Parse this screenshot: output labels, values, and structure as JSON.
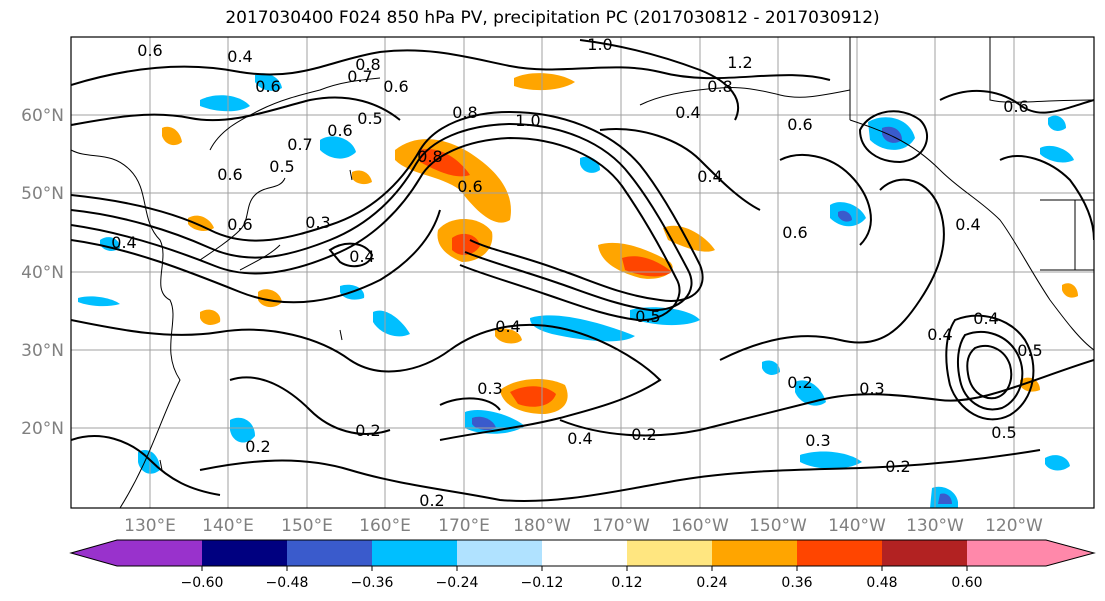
{
  "title": "2017030400 F024 850 hPa PV, precipitation PC (2017030812 - 2017030912)",
  "lat_labels": [
    "60°N",
    "50°N",
    "40°N",
    "30°N",
    "20°N"
  ],
  "lon_labels": [
    "130°E",
    "140°E",
    "150°E",
    "160°E",
    "170°E",
    "180°W",
    "170°W",
    "160°W",
    "150°W",
    "140°W",
    "130°W",
    "120°W"
  ],
  "colorbar": {
    "colors": [
      "#9932cc",
      "#000080",
      "#3a5bcc",
      "#00bfff",
      "#b0e2ff",
      "#ffffff",
      "#ffe680",
      "#ffa500",
      "#ff4500",
      "#b22222",
      "#ff88aa"
    ],
    "tick_labels": [
      "−0.60",
      "−0.48",
      "−0.36",
      "−0.24",
      "−0.12",
      "0.12",
      "0.24",
      "0.36",
      "0.48",
      "0.60"
    ]
  },
  "contour_labels": [
    "0.6",
    "0.4",
    "0.6",
    "0.8",
    "0.7",
    "0.6",
    "1.0",
    "1.2",
    "0.8",
    "0.4",
    "0.6",
    "0.5",
    "0.6",
    "0.7",
    "0.5",
    "0.6",
    "0.8",
    "0.6",
    "1.0",
    "0.8",
    "0.6",
    "0.4",
    "0.6",
    "0.4",
    "0.6",
    "0.4",
    "0.4",
    "0.5",
    "0.4",
    "0.3",
    "0.4",
    "0.2",
    "0.2",
    "0.2",
    "0.4",
    "0.3",
    "0.2",
    "0.3",
    "0.5",
    "0.2",
    "0.3",
    "0.4",
    "0.5",
    "0.2"
  ]
}
